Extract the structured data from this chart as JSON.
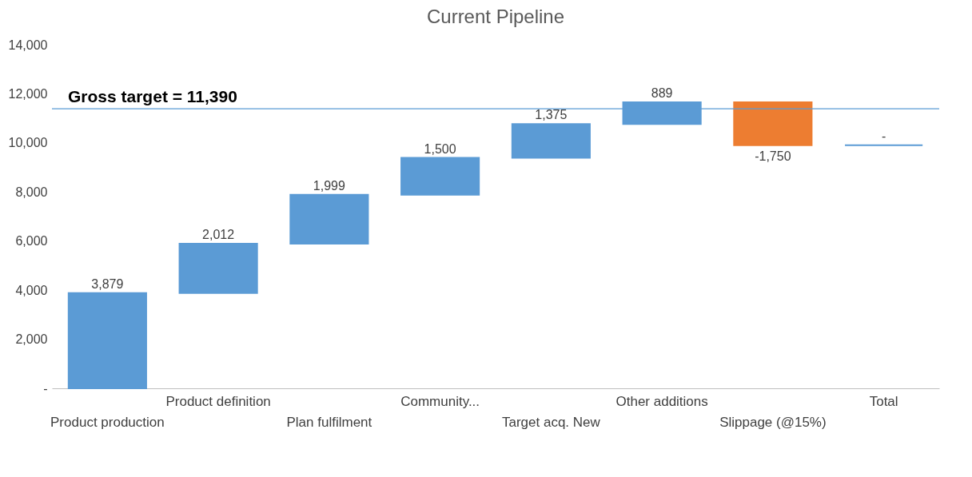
{
  "chart_data": {
    "type": "bar",
    "title": "Current Pipeline",
    "categories": [
      "Product production",
      "Product definition",
      "Plan fulfilment",
      "Community...",
      "Target acq. New",
      "Other additions",
      "Slippage (@15%)",
      "Total"
    ],
    "values": [
      3879,
      2012,
      1999,
      1500,
      1375,
      889,
      -1750,
      0
    ],
    "base": [
      0,
      3879,
      5891,
      7890,
      9390,
      10765,
      11654,
      9904
    ],
    "colors": [
      "#5b9bd5",
      "#5b9bd5",
      "#5b9bd5",
      "#5b9bd5",
      "#5b9bd5",
      "#5b9bd5",
      "#ed7d31",
      "#5b9bd5"
    ],
    "value_labels": [
      "3,879",
      "2,012",
      "1,999",
      "1,500",
      "1,375",
      "889",
      "-1,750",
      "-"
    ],
    "ylim": [
      0,
      14000
    ],
    "yticks": [
      {
        "value": 0,
        "label": "-"
      },
      {
        "value": 2000,
        "label": "2,000"
      },
      {
        "value": 4000,
        "label": "4,000"
      },
      {
        "value": 6000,
        "label": "6,000"
      },
      {
        "value": 8000,
        "label": "8,000"
      },
      {
        "value": 10000,
        "label": "10,000"
      },
      {
        "value": 12000,
        "label": "12,000"
      },
      {
        "value": 14000,
        "label": "14,000"
      }
    ],
    "ref_lines": [
      {
        "axis": "y",
        "value": 11390,
        "label": "Gross target  = 11,390",
        "color": "#5b9bd5"
      }
    ],
    "grid": false
  }
}
